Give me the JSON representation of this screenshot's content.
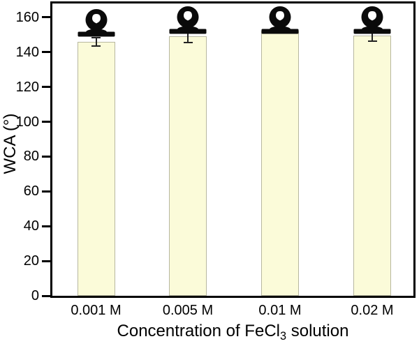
{
  "figure": {
    "background": "#ffffff",
    "text_color": "#000000"
  },
  "chart_data": {
    "type": "bar",
    "title": "",
    "categories": [
      "0.001 M",
      "0.005 M",
      "0.01 M",
      "0.02 M"
    ],
    "values": [
      146,
      149,
      152.5,
      149.5
    ],
    "error_bars": [
      2.5,
      3.5,
      1.5,
      3
    ],
    "xlabel": "Concentration of FeCl3 solution",
    "xlabel_parts": {
      "pre": "Concentration of FeCl",
      "sub": "3",
      "post": " solution"
    },
    "ylabel": "WCA (°)",
    "ylim": [
      0,
      168
    ],
    "yticks": [
      0,
      20,
      40,
      60,
      80,
      100,
      120,
      140,
      160
    ],
    "grid": false,
    "legend": null,
    "frame": "full-box",
    "bar_fill_color": "#FBFBD9",
    "bar_border_color": "#B7B7A0",
    "frame_color": "#000000",
    "error_bar_color": "#222222",
    "annotations": {
      "per_bar_icon": "water-droplet-on-substrate-photo",
      "icon_color": "#0a0a0a",
      "icon_count": 4
    }
  }
}
